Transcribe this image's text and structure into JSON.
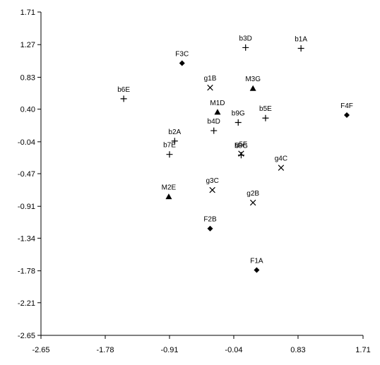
{
  "chart_data": {
    "type": "scatter",
    "title": "",
    "xlabel": "",
    "ylabel": "",
    "xlim": [
      -2.65,
      1.71
    ],
    "ylim": [
      -2.65,
      1.71
    ],
    "grid": false,
    "x_ticks": [
      "-2.65",
      "-1.78",
      "-0.91",
      "-0.04",
      "0.83",
      "1.71"
    ],
    "y_ticks": [
      "1.71",
      "1.27",
      "0.83",
      "0.40",
      "-0.04",
      "-0.47",
      "-0.91",
      "-1.34",
      "-1.78",
      "-2.21",
      "-2.65"
    ],
    "points": [
      {
        "label": "b3D",
        "x": 0.12,
        "y": 1.23,
        "marker": "plus"
      },
      {
        "label": "b1A",
        "x": 0.87,
        "y": 1.22,
        "marker": "plus"
      },
      {
        "label": "F3C",
        "x": -0.74,
        "y": 1.02,
        "marker": "diamond"
      },
      {
        "label": "g1B",
        "x": -0.36,
        "y": 0.69,
        "marker": "cross"
      },
      {
        "label": "M3G",
        "x": 0.22,
        "y": 0.68,
        "marker": "triangle"
      },
      {
        "label": "b6E",
        "x": -1.53,
        "y": 0.54,
        "marker": "plus"
      },
      {
        "label": "M1D",
        "x": -0.26,
        "y": 0.36,
        "marker": "triangle"
      },
      {
        "label": "F4F",
        "x": 1.49,
        "y": 0.32,
        "marker": "diamond"
      },
      {
        "label": "b5E",
        "x": 0.39,
        "y": 0.28,
        "marker": "plus"
      },
      {
        "label": "b9G",
        "x": 0.02,
        "y": 0.22,
        "marker": "plus"
      },
      {
        "label": "b4D",
        "x": -0.31,
        "y": 0.11,
        "marker": "plus"
      },
      {
        "label": "b2A",
        "x": -0.84,
        "y": -0.03,
        "marker": "plus"
      },
      {
        "label": "b7E",
        "x": -0.91,
        "y": -0.21,
        "marker": "plus"
      },
      {
        "label": "g5F",
        "x": 0.06,
        "y": -0.2,
        "marker": "cross"
      },
      {
        "label": "b8G",
        "x": 0.06,
        "y": -0.22,
        "marker": "plus"
      },
      {
        "label": "g4C",
        "x": 0.6,
        "y": -0.39,
        "marker": "cross"
      },
      {
        "label": "g3C",
        "x": -0.33,
        "y": -0.69,
        "marker": "cross"
      },
      {
        "label": "M2E",
        "x": -0.92,
        "y": -0.78,
        "marker": "triangle"
      },
      {
        "label": "g2B",
        "x": 0.22,
        "y": -0.86,
        "marker": "cross"
      },
      {
        "label": "F2B",
        "x": -0.36,
        "y": -1.21,
        "marker": "diamond"
      },
      {
        "label": "F1A",
        "x": 0.27,
        "y": -1.77,
        "marker": "diamond"
      }
    ]
  }
}
